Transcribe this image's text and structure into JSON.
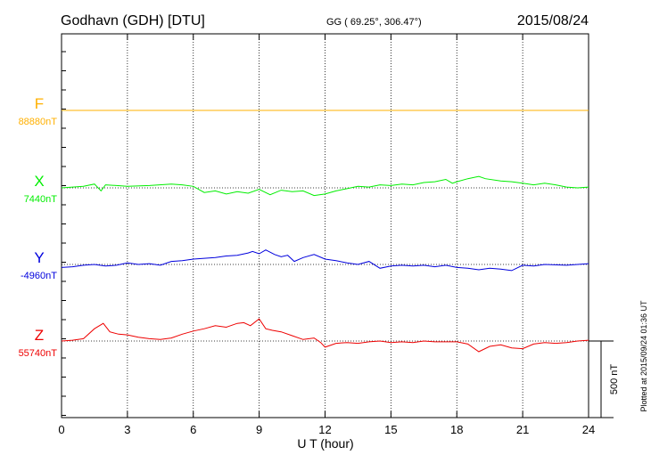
{
  "header": {
    "station": "Godhavn (GDH)  [DTU]",
    "coords": "GG ( 69.25°, 306.47°)",
    "date": "2015/08/24"
  },
  "footer": {
    "plotted": "Plotted at 2015/09/24 01:36 UT"
  },
  "chart_data": {
    "type": "line",
    "xlabel": "U T (hour)",
    "xlim": [
      0,
      24
    ],
    "xticks": [
      "0",
      "3",
      "6",
      "9",
      "12",
      "15",
      "18",
      "21",
      "24"
    ],
    "grid": true,
    "scale_bar": {
      "label": "500 nT",
      "value": 500
    },
    "series": [
      {
        "name": "F",
        "baseline_label": "88880nT",
        "color": "#ffb000",
        "baseline": 88880,
        "values": [
          [
            0,
            0
          ],
          [
            6,
            0
          ],
          [
            12,
            0
          ],
          [
            18,
            0
          ],
          [
            24,
            0
          ]
        ]
      },
      {
        "name": "X",
        "baseline_label": "7440nT",
        "color": "#00ee00",
        "baseline": 7440,
        "values": [
          [
            0,
            0
          ],
          [
            0.5,
            5
          ],
          [
            1.0,
            10
          ],
          [
            1.5,
            25
          ],
          [
            1.8,
            -20
          ],
          [
            2.0,
            20
          ],
          [
            2.5,
            15
          ],
          [
            3.0,
            10
          ],
          [
            4.0,
            15
          ],
          [
            5.0,
            25
          ],
          [
            5.5,
            20
          ],
          [
            6.0,
            10
          ],
          [
            6.5,
            -30
          ],
          [
            7.0,
            -20
          ],
          [
            7.5,
            -40
          ],
          [
            8.0,
            -25
          ],
          [
            8.5,
            -35
          ],
          [
            9.0,
            -10
          ],
          [
            9.5,
            -45
          ],
          [
            10.0,
            -15
          ],
          [
            10.5,
            -25
          ],
          [
            11.0,
            -20
          ],
          [
            11.5,
            -50
          ],
          [
            12.0,
            -40
          ],
          [
            12.5,
            -20
          ],
          [
            13.0,
            -5
          ],
          [
            13.5,
            10
          ],
          [
            14.0,
            5
          ],
          [
            14.5,
            20
          ],
          [
            15.0,
            15
          ],
          [
            15.5,
            25
          ],
          [
            16.0,
            20
          ],
          [
            16.5,
            35
          ],
          [
            17.0,
            40
          ],
          [
            17.5,
            55
          ],
          [
            17.8,
            30
          ],
          [
            18.0,
            40
          ],
          [
            18.5,
            60
          ],
          [
            19.0,
            75
          ],
          [
            19.3,
            60
          ],
          [
            20.0,
            45
          ],
          [
            20.5,
            40
          ],
          [
            21.0,
            30
          ],
          [
            21.5,
            20
          ],
          [
            22.0,
            30
          ],
          [
            22.5,
            20
          ],
          [
            23.0,
            5
          ],
          [
            23.5,
            0
          ],
          [
            24.0,
            5
          ]
        ]
      },
      {
        "name": "Y",
        "baseline_label": "-4960nT",
        "color": "#0000dd",
        "baseline": -4960,
        "values": [
          [
            0,
            -20
          ],
          [
            0.5,
            -15
          ],
          [
            1.0,
            -5
          ],
          [
            1.5,
            0
          ],
          [
            2.0,
            -10
          ],
          [
            2.5,
            -5
          ],
          [
            3.0,
            10
          ],
          [
            3.5,
            0
          ],
          [
            4.0,
            5
          ],
          [
            4.5,
            -5
          ],
          [
            5.0,
            20
          ],
          [
            5.5,
            25
          ],
          [
            6.0,
            35
          ],
          [
            6.5,
            40
          ],
          [
            7.0,
            45
          ],
          [
            7.5,
            55
          ],
          [
            8.0,
            60
          ],
          [
            8.5,
            75
          ],
          [
            8.7,
            85
          ],
          [
            9.0,
            70
          ],
          [
            9.3,
            95
          ],
          [
            9.7,
            65
          ],
          [
            10.0,
            50
          ],
          [
            10.3,
            60
          ],
          [
            10.6,
            20
          ],
          [
            11.0,
            45
          ],
          [
            11.5,
            65
          ],
          [
            12.0,
            35
          ],
          [
            12.5,
            25
          ],
          [
            13.0,
            10
          ],
          [
            13.5,
            0
          ],
          [
            14.0,
            20
          ],
          [
            14.5,
            -25
          ],
          [
            15.0,
            -10
          ],
          [
            15.5,
            -5
          ],
          [
            16.0,
            -10
          ],
          [
            16.5,
            -5
          ],
          [
            17.0,
            -15
          ],
          [
            17.5,
            -5
          ],
          [
            18.0,
            -20
          ],
          [
            18.5,
            -25
          ],
          [
            19.0,
            -35
          ],
          [
            19.5,
            -25
          ],
          [
            20.0,
            -30
          ],
          [
            20.5,
            -40
          ],
          [
            21.0,
            -5
          ],
          [
            21.5,
            -10
          ],
          [
            22.0,
            0
          ],
          [
            23.0,
            -5
          ],
          [
            24.0,
            5
          ]
        ]
      },
      {
        "name": "Z",
        "baseline_label": "55740nT",
        "color": "#ee0000",
        "baseline": 55740,
        "values": [
          [
            0,
            0
          ],
          [
            0.5,
            5
          ],
          [
            1.0,
            15
          ],
          [
            1.5,
            80
          ],
          [
            1.9,
            115
          ],
          [
            2.2,
            60
          ],
          [
            2.6,
            45
          ],
          [
            3.0,
            40
          ],
          [
            3.5,
            25
          ],
          [
            4.0,
            15
          ],
          [
            4.5,
            10
          ],
          [
            5.0,
            20
          ],
          [
            5.5,
            45
          ],
          [
            6.0,
            65
          ],
          [
            6.5,
            80
          ],
          [
            7.0,
            100
          ],
          [
            7.5,
            90
          ],
          [
            8.0,
            115
          ],
          [
            8.3,
            120
          ],
          [
            8.6,
            100
          ],
          [
            9.0,
            145
          ],
          [
            9.3,
            80
          ],
          [
            9.6,
            70
          ],
          [
            10.0,
            60
          ],
          [
            10.5,
            35
          ],
          [
            11.0,
            10
          ],
          [
            11.5,
            20
          ],
          [
            11.8,
            -10
          ],
          [
            12.0,
            -40
          ],
          [
            12.5,
            -15
          ],
          [
            13.0,
            -10
          ],
          [
            13.5,
            -15
          ],
          [
            14.0,
            -5
          ],
          [
            14.5,
            0
          ],
          [
            15.0,
            -10
          ],
          [
            15.5,
            -5
          ],
          [
            16.0,
            -10
          ],
          [
            16.5,
            0
          ],
          [
            17.0,
            -5
          ],
          [
            17.5,
            -5
          ],
          [
            18.0,
            -5
          ],
          [
            18.5,
            -20
          ],
          [
            19.0,
            -70
          ],
          [
            19.5,
            -35
          ],
          [
            20.0,
            -25
          ],
          [
            20.5,
            -45
          ],
          [
            21.0,
            -50
          ],
          [
            21.5,
            -20
          ],
          [
            22.0,
            -10
          ],
          [
            22.5,
            -15
          ],
          [
            23.0,
            -10
          ],
          [
            23.5,
            0
          ],
          [
            24.0,
            5
          ]
        ]
      }
    ]
  }
}
